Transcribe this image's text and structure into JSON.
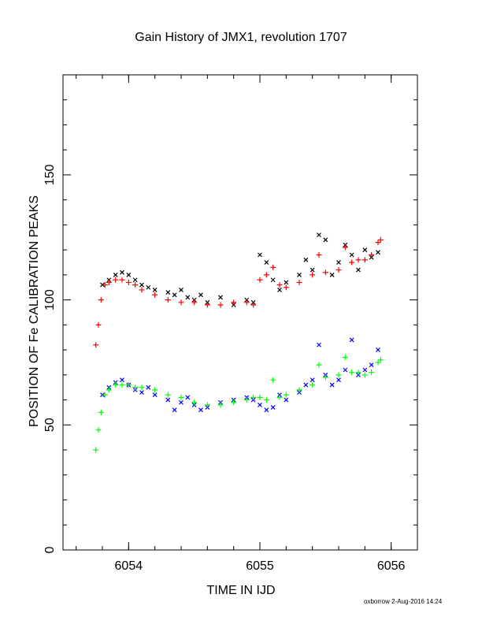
{
  "chart_data": {
    "type": "scatter",
    "title": "Gain History of JMX1, revolution 1707",
    "xlabel": "TIME IN IJD",
    "ylabel": "POSITION OF Fe CALIBRATION PEAKS",
    "xlim": [
      6053.5,
      6056.2
    ],
    "ylim": [
      0,
      190
    ],
    "x_ticks": [
      6054,
      6055,
      6056
    ],
    "x_tick_labels": [
      "6054",
      "6055",
      "6056"
    ],
    "y_ticks": [
      0,
      50,
      100,
      150
    ],
    "y_tick_labels": [
      "0",
      "50",
      "100",
      "150"
    ],
    "grid": false,
    "series_colors": [
      "#000000",
      "#ff0000",
      "#0000ff",
      "#00ff00"
    ],
    "series": [
      {
        "marker": "x",
        "color": "#000000",
        "x": [
          6053.8,
          6053.85,
          6053.9,
          6053.95,
          6054.0,
          6054.05,
          6054.1,
          6054.15,
          6054.2,
          6054.3,
          6054.35,
          6054.4,
          6054.45,
          6054.5,
          6054.55,
          6054.6,
          6054.7,
          6054.8,
          6054.9,
          6054.95,
          6055.0,
          6055.05,
          6055.1,
          6055.15,
          6055.2,
          6055.3,
          6055.35,
          6055.4,
          6055.45,
          6055.5,
          6055.55,
          6055.6,
          6055.65,
          6055.7,
          6055.75,
          6055.8,
          6055.85,
          6055.9
        ],
        "y": [
          106,
          108,
          110,
          111,
          110,
          108,
          106,
          105,
          104,
          103,
          102,
          104,
          101,
          100,
          102,
          99,
          101,
          98,
          100,
          99,
          118,
          115,
          108,
          104,
          107,
          110,
          116,
          112,
          126,
          124,
          110,
          115,
          122,
          118,
          112,
          120,
          117,
          119
        ]
      },
      {
        "marker": "+",
        "color": "#ff0000",
        "x": [
          6053.75,
          6053.77,
          6053.79,
          6053.82,
          6053.85,
          6053.9,
          6053.95,
          6054.0,
          6054.05,
          6054.1,
          6054.2,
          6054.3,
          6054.4,
          6054.5,
          6054.6,
          6054.7,
          6054.8,
          6054.9,
          6054.95,
          6055.0,
          6055.05,
          6055.1,
          6055.15,
          6055.2,
          6055.3,
          6055.4,
          6055.45,
          6055.5,
          6055.6,
          6055.65,
          6055.7,
          6055.75,
          6055.8,
          6055.85,
          6055.9,
          6055.92
        ],
        "y": [
          82,
          90,
          100,
          106,
          107,
          108,
          108,
          107,
          106,
          104,
          102,
          100,
          99,
          99,
          98,
          98,
          99,
          99,
          98,
          108,
          110,
          113,
          106,
          105,
          107,
          110,
          118,
          111,
          112,
          121,
          115,
          116,
          116,
          118,
          123,
          124
        ]
      },
      {
        "marker": "x",
        "color": "#0000ff",
        "x": [
          6053.8,
          6053.85,
          6053.9,
          6053.95,
          6054.0,
          6054.05,
          6054.1,
          6054.15,
          6054.2,
          6054.3,
          6054.35,
          6054.4,
          6054.45,
          6054.5,
          6054.55,
          6054.6,
          6054.7,
          6054.8,
          6054.9,
          6054.95,
          6055.0,
          6055.05,
          6055.1,
          6055.15,
          6055.2,
          6055.3,
          6055.35,
          6055.4,
          6055.45,
          6055.5,
          6055.55,
          6055.6,
          6055.65,
          6055.7,
          6055.75,
          6055.8,
          6055.85,
          6055.9
        ],
        "y": [
          62,
          65,
          67,
          68,
          66,
          64,
          63,
          65,
          62,
          60,
          56,
          59,
          61,
          58,
          56,
          57,
          59,
          60,
          61,
          60,
          58,
          56,
          57,
          62,
          60,
          63,
          66,
          68,
          82,
          70,
          66,
          68,
          72,
          84,
          70,
          72,
          74,
          80
        ]
      },
      {
        "marker": "+",
        "color": "#00ff00",
        "x": [
          6053.75,
          6053.77,
          6053.79,
          6053.82,
          6053.85,
          6053.9,
          6053.95,
          6054.0,
          6054.05,
          6054.1,
          6054.2,
          6054.3,
          6054.4,
          6054.5,
          6054.6,
          6054.7,
          6054.8,
          6054.9,
          6054.95,
          6055.0,
          6055.05,
          6055.1,
          6055.15,
          6055.2,
          6055.3,
          6055.4,
          6055.45,
          6055.5,
          6055.6,
          6055.65,
          6055.7,
          6055.75,
          6055.8,
          6055.85,
          6055.9,
          6055.92
        ],
        "y": [
          40,
          48,
          55,
          62,
          64,
          66,
          66,
          66,
          65,
          65,
          64,
          62,
          61,
          59,
          58,
          58,
          59,
          60,
          61,
          61,
          60,
          68,
          61,
          62,
          64,
          66,
          74,
          69,
          70,
          77,
          71,
          71,
          70,
          71,
          75,
          76
        ]
      }
    ]
  },
  "footer": {
    "credit": "oxborrow  2-Aug-2016 14:24"
  }
}
